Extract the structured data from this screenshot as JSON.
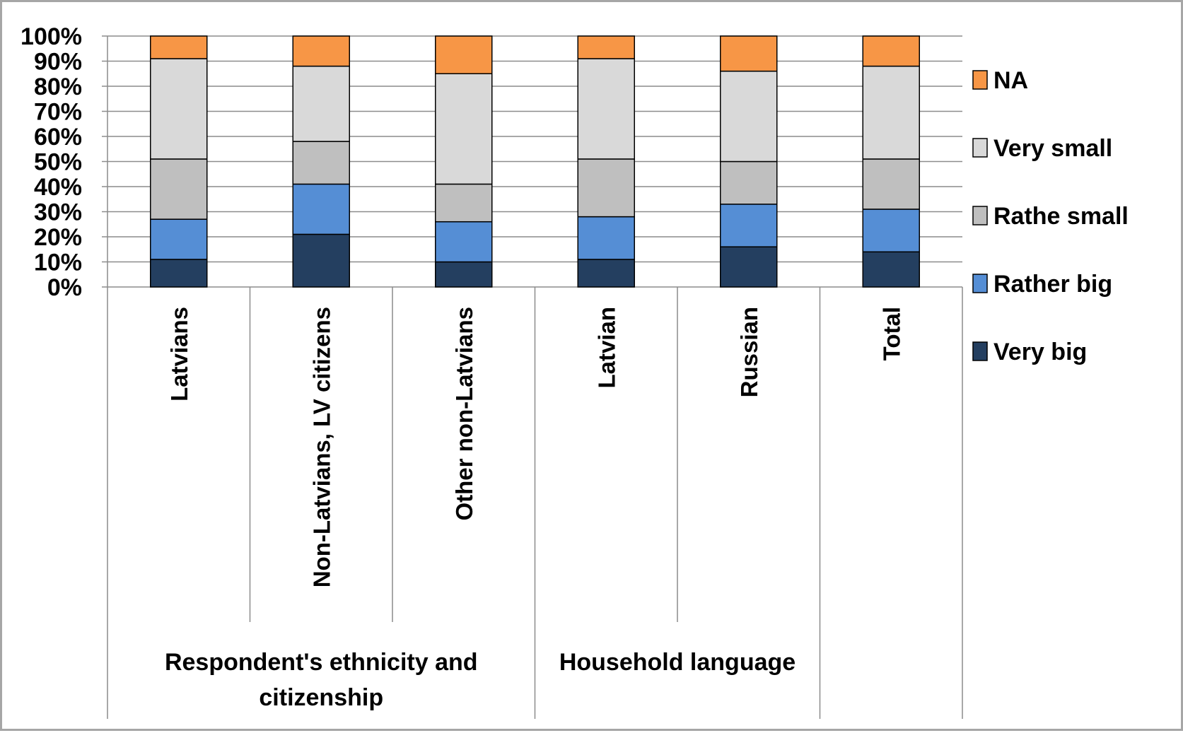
{
  "chart_data": {
    "type": "bar",
    "stacked": true,
    "percent": true,
    "title": "",
    "xlabel": "",
    "ylabel": "",
    "ylim": [
      0,
      100
    ],
    "yticks": [
      "0%",
      "10%",
      "20%",
      "30%",
      "40%",
      "50%",
      "60%",
      "70%",
      "80%",
      "90%",
      "100%"
    ],
    "grid": true,
    "legend_position": "right",
    "categories": [
      "Latvians",
      "Non-Latvians, LV citizens",
      "Other non-Latvians",
      "Latvian",
      "Russian",
      "Total"
    ],
    "groups": [
      {
        "label": "Respondent's ethnicity and citizenship",
        "categories": [
          "Latvians",
          "Non-Latvians, LV citizens",
          "Other non-Latvians"
        ]
      },
      {
        "label": "Household language",
        "categories": [
          "Latvian",
          "Russian"
        ]
      }
    ],
    "series": [
      {
        "name": "Very big",
        "color": "#243f60",
        "values": [
          11,
          21,
          10,
          11,
          16,
          14
        ]
      },
      {
        "name": "Rather big",
        "color": "#558ed5",
        "values": [
          16,
          20,
          16,
          17,
          17,
          17
        ]
      },
      {
        "name": "Rathe small",
        "color": "#bfbfbf",
        "values": [
          24,
          17,
          15,
          23,
          17,
          20
        ]
      },
      {
        "name": "Very small",
        "color": "#d9d9d9",
        "values": [
          40,
          30,
          44,
          40,
          36,
          37
        ]
      },
      {
        "name": "NA",
        "color": "#f79646",
        "values": [
          9,
          12,
          15,
          9,
          14,
          12
        ]
      }
    ]
  }
}
